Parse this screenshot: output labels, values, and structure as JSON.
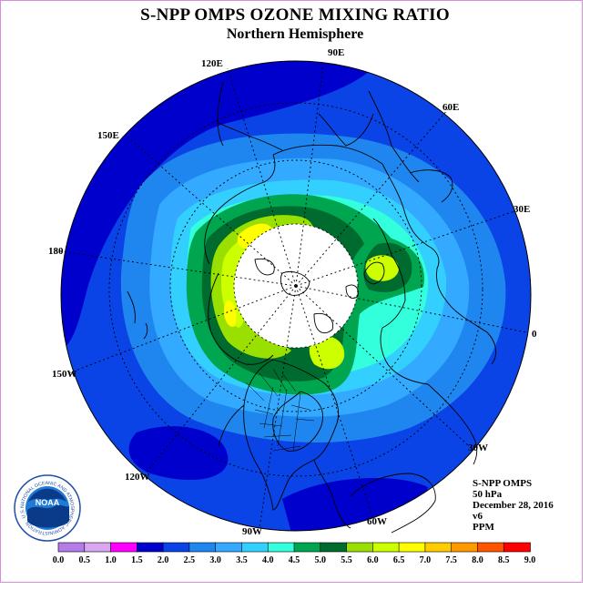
{
  "header": {
    "title": "S-NPP OMPS OZONE MIXING RATIO",
    "subtitle": "Northern Hemisphere"
  },
  "map": {
    "projection": "polar-stereographic",
    "hemisphere": "north",
    "longitude_labels": [
      "90E",
      "60E",
      "30E",
      "0",
      "30W",
      "60W",
      "90W",
      "120W",
      "150W",
      "180",
      "150E",
      "120E"
    ],
    "no_data_region": "polar night (white disc)",
    "shown_levels_ppm": [
      "1.5-2.0",
      "2.0-2.5",
      "2.5-3.0",
      "3.0-3.5",
      "3.5-4.0",
      "4.0-4.5",
      "4.5-5.0",
      "5.0-5.5",
      "5.5-6.0",
      "6.0-6.5"
    ]
  },
  "info": {
    "lines": [
      "S-NPP OMPS",
      "50 hPa",
      "December 28, 2016",
      "v6",
      "PPM"
    ]
  },
  "colorbar": {
    "labels": [
      "0.0",
      "0.5",
      "1.0",
      "1.5",
      "2.0",
      "2.5",
      "3.0",
      "3.5",
      "4.0",
      "4.5",
      "5.0",
      "5.5",
      "6.0",
      "6.5",
      "7.0",
      "7.5",
      "8.0",
      "8.5",
      "9.0"
    ],
    "colors": [
      "#b57be8",
      "#d9a6f0",
      "#ff00ff",
      "#0000cd",
      "#0a43e6",
      "#1f86f0",
      "#33aaff",
      "#33d0ff",
      "#33ffdd",
      "#00a550",
      "#006b2e",
      "#99e000",
      "#ccff00",
      "#ffff00",
      "#ffcc00",
      "#ff9900",
      "#ff5500",
      "#ff0000",
      "#8b4513"
    ]
  },
  "logo": {
    "text": "NOAA",
    "ring_text": "NATIONAL OCEANIC AND ATMOSPHERIC ADMINISTRATION · U.S. DEPARTMENT OF COMMERCE"
  }
}
